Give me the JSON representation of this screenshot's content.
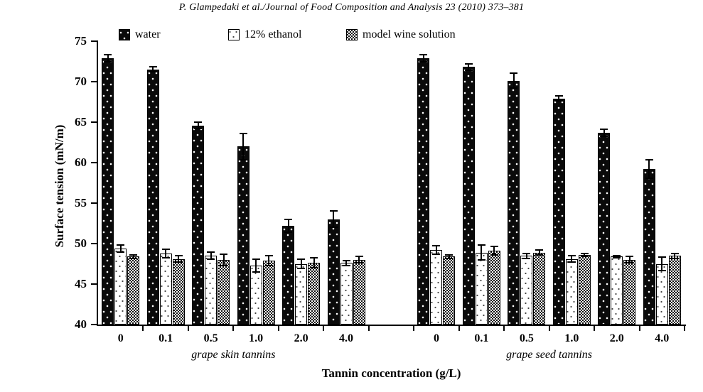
{
  "header": {
    "citation": "P. Glampedaki et al./Journal of Food Composition and Analysis 23 (2010) 373–381"
  },
  "colors": {
    "foreground": "#000000",
    "background": "#ffffff"
  },
  "chart_data": {
    "type": "bar",
    "title": "",
    "xlabel": "Tannin concentration (g/L)",
    "ylabel": "Surface tension (mN/m)",
    "ylim": [
      40,
      75
    ],
    "yticks": [
      40,
      45,
      50,
      55,
      60,
      65,
      70,
      75
    ],
    "grid": false,
    "legend_position": "top-inside",
    "legend": [
      "water",
      "12% ethanol",
      "model wine solution"
    ],
    "error_bars": true,
    "groups": [
      {
        "label": "grape skin tannins",
        "categories": [
          "0",
          "0.1",
          "0.5",
          "1.0",
          "2.0",
          "4.0"
        ],
        "series": [
          {
            "name": "water",
            "values": [
              72.9,
              71.5,
              64.6,
              62.0,
              52.2,
              53.0
            ],
            "errors": [
              0.5,
              0.4,
              0.5,
              1.7,
              0.9,
              1.1
            ]
          },
          {
            "name": "12% ethanol",
            "values": [
              49.4,
              48.8,
              48.5,
              47.3,
              47.5,
              47.6
            ],
            "errors": [
              0.5,
              0.6,
              0.5,
              0.9,
              0.7,
              0.4
            ]
          },
          {
            "name": "model wine solution",
            "values": [
              48.4,
              48.1,
              48.0,
              47.9,
              47.6,
              48.0
            ],
            "errors": [
              0.3,
              0.5,
              0.8,
              0.7,
              0.7,
              0.5
            ]
          }
        ]
      },
      {
        "label": "grape seed tannins",
        "categories": [
          "0",
          "0.1",
          "0.5",
          "1.0",
          "2.0",
          "4.0"
        ],
        "series": [
          {
            "name": "water",
            "values": [
              72.9,
              71.8,
              70.1,
              67.9,
              63.7,
              59.2
            ],
            "errors": [
              0.5,
              0.5,
              1.0,
              0.4,
              0.5,
              1.2
            ]
          },
          {
            "name": "12% ethanol",
            "values": [
              49.2,
              48.9,
              48.5,
              48.1,
              48.4,
              47.5
            ],
            "errors": [
              0.6,
              1.0,
              0.4,
              0.5,
              0.2,
              0.9
            ]
          },
          {
            "name": "model wine solution",
            "values": [
              48.4,
              49.1,
              48.9,
              48.6,
              48.0,
              48.5
            ],
            "errors": [
              0.3,
              0.6,
              0.4,
              0.3,
              0.5,
              0.4
            ]
          }
        ]
      }
    ]
  }
}
